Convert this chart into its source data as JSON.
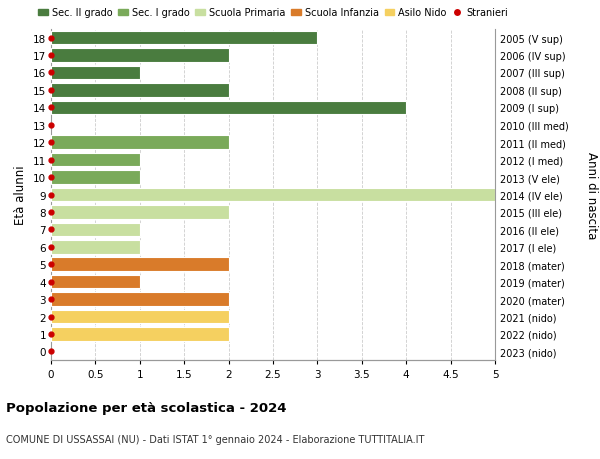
{
  "ages": [
    18,
    17,
    16,
    15,
    14,
    13,
    12,
    11,
    10,
    9,
    8,
    7,
    6,
    5,
    4,
    3,
    2,
    1,
    0
  ],
  "right_labels": [
    "2005 (V sup)",
    "2006 (IV sup)",
    "2007 (III sup)",
    "2008 (II sup)",
    "2009 (I sup)",
    "2010 (III med)",
    "2011 (II med)",
    "2012 (I med)",
    "2013 (V ele)",
    "2014 (IV ele)",
    "2015 (III ele)",
    "2016 (II ele)",
    "2017 (I ele)",
    "2018 (mater)",
    "2019 (mater)",
    "2020 (mater)",
    "2021 (nido)",
    "2022 (nido)",
    "2023 (nido)"
  ],
  "bars": [
    {
      "age": 18,
      "value": 3.0,
      "color": "#4a7c3f"
    },
    {
      "age": 17,
      "value": 2.0,
      "color": "#4a7c3f"
    },
    {
      "age": 16,
      "value": 1.0,
      "color": "#4a7c3f"
    },
    {
      "age": 15,
      "value": 2.0,
      "color": "#4a7c3f"
    },
    {
      "age": 14,
      "value": 4.0,
      "color": "#4a7c3f"
    },
    {
      "age": 13,
      "value": 0.0,
      "color": "#4a7c3f"
    },
    {
      "age": 12,
      "value": 2.0,
      "color": "#7aaa5a"
    },
    {
      "age": 11,
      "value": 1.0,
      "color": "#7aaa5a"
    },
    {
      "age": 10,
      "value": 1.0,
      "color": "#7aaa5a"
    },
    {
      "age": 9,
      "value": 5.0,
      "color": "#c8dfa0"
    },
    {
      "age": 8,
      "value": 2.0,
      "color": "#c8dfa0"
    },
    {
      "age": 7,
      "value": 1.0,
      "color": "#c8dfa0"
    },
    {
      "age": 6,
      "value": 1.0,
      "color": "#c8dfa0"
    },
    {
      "age": 5,
      "value": 2.0,
      "color": "#d97b2a"
    },
    {
      "age": 4,
      "value": 1.0,
      "color": "#d97b2a"
    },
    {
      "age": 3,
      "value": 2.0,
      "color": "#d97b2a"
    },
    {
      "age": 2,
      "value": 2.0,
      "color": "#f5d060"
    },
    {
      "age": 1,
      "value": 2.0,
      "color": "#f5d060"
    },
    {
      "age": 0,
      "value": 0.0,
      "color": "#f5d060"
    }
  ],
  "stranieri_dots": [
    18,
    17,
    16,
    15,
    14,
    13,
    12,
    11,
    10,
    9,
    8,
    7,
    6,
    5,
    4,
    3,
    2,
    1,
    0
  ],
  "legend_entries": [
    {
      "label": "Sec. II grado",
      "color": "#4a7c3f",
      "type": "patch"
    },
    {
      "label": "Sec. I grado",
      "color": "#7aaa5a",
      "type": "patch"
    },
    {
      "label": "Scuola Primaria",
      "color": "#c8dfa0",
      "type": "patch"
    },
    {
      "label": "Scuola Infanzia",
      "color": "#d97b2a",
      "type": "patch"
    },
    {
      "label": "Asilo Nido",
      "color": "#f5d060",
      "type": "patch"
    },
    {
      "label": "Stranieri",
      "color": "#cc0000",
      "type": "dot"
    }
  ],
  "ylabel": "Età alunni",
  "right_ylabel": "Anni di nascita",
  "title": "Popolazione per età scolastica - 2024",
  "subtitle": "COMUNE DI USSASSAI (NU) - Dati ISTAT 1° gennaio 2024 - Elaborazione TUTTITALIA.IT",
  "xlim": [
    0,
    5.0
  ],
  "xticks": [
    0,
    0.5,
    1.0,
    1.5,
    2.0,
    2.5,
    3.0,
    3.5,
    4.0,
    4.5,
    5.0
  ],
  "bar_height": 0.78,
  "bg_color": "#ffffff",
  "grid_color": "#cccccc"
}
